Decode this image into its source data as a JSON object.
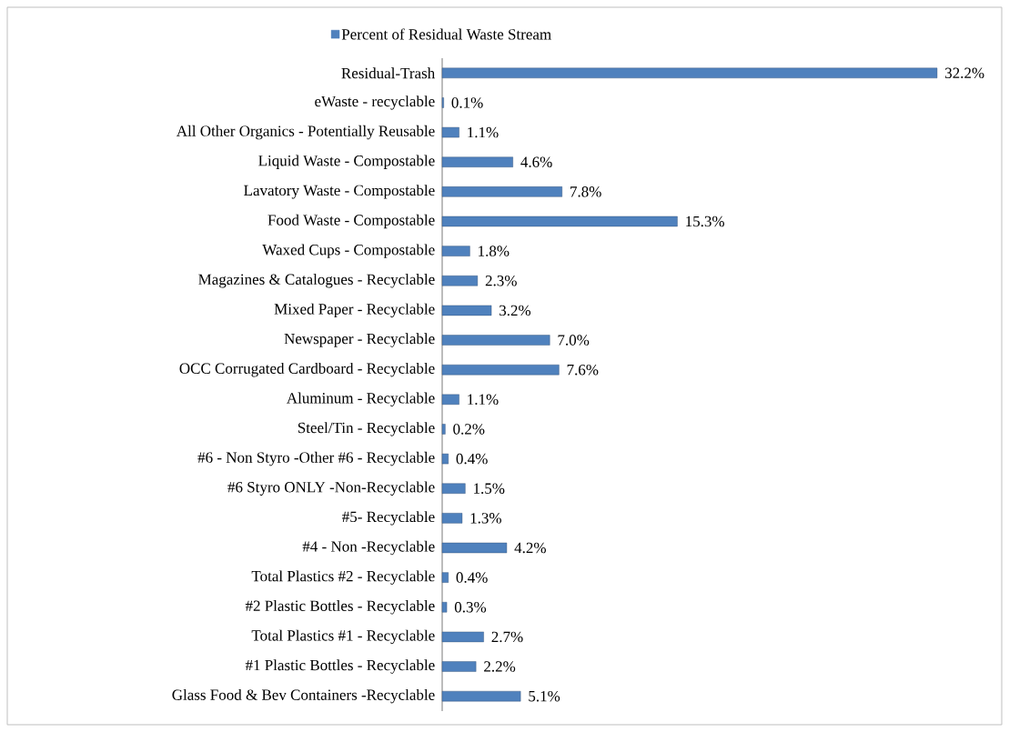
{
  "chart_data": {
    "type": "bar",
    "orientation": "horizontal",
    "legend": "top",
    "categories": [
      "Residual-Trash",
      "eWaste - recyclable",
      "All Other Organics - Potentially Reusable",
      "Liquid Waste - Compostable",
      "Lavatory Waste - Compostable",
      "Food Waste - Compostable",
      "Waxed Cups - Compostable",
      "Magazines & Catalogues - Recyclable",
      "Mixed Paper - Recyclable",
      "Newspaper - Recyclable",
      "OCC Corrugated Cardboard - Recyclable",
      "Aluminum - Recyclable",
      "Steel/Tin - Recyclable",
      "#6 - Non Styro -Other #6 - Recyclable",
      "#6 Styro ONLY -Non-Recyclable",
      "#5- Recyclable",
      "#4  - Non -Recyclable",
      "Total Plastics #2 - Recyclable",
      "#2 Plastic Bottles - Recyclable",
      "Total Plastics #1 - Recyclable",
      "#1 Plastic Bottles - Recyclable",
      "Glass Food & Bev Containers -Recyclable"
    ],
    "series": [
      {
        "name": "Percent of Residual Waste Stream",
        "color": "#4f81bd",
        "values": [
          32.2,
          0.1,
          1.1,
          4.6,
          7.8,
          15.3,
          1.8,
          2.3,
          3.2,
          7.0,
          7.6,
          1.1,
          0.2,
          0.4,
          1.5,
          1.3,
          4.2,
          0.4,
          0.3,
          2.7,
          2.2,
          5.1
        ],
        "value_labels": [
          "32.2%",
          "0.1%",
          "1.1%",
          "4.6%",
          "7.8%",
          "15.3%",
          "1.8%",
          "2.3%",
          "3.2%",
          "7.0%",
          "7.6%",
          "1.1%",
          "0.2%",
          "0.4%",
          "1.5%",
          "1.3%",
          "4.2%",
          "0.4%",
          "0.3%",
          "2.7%",
          "2.2%",
          "5.1%"
        ]
      }
    ]
  }
}
